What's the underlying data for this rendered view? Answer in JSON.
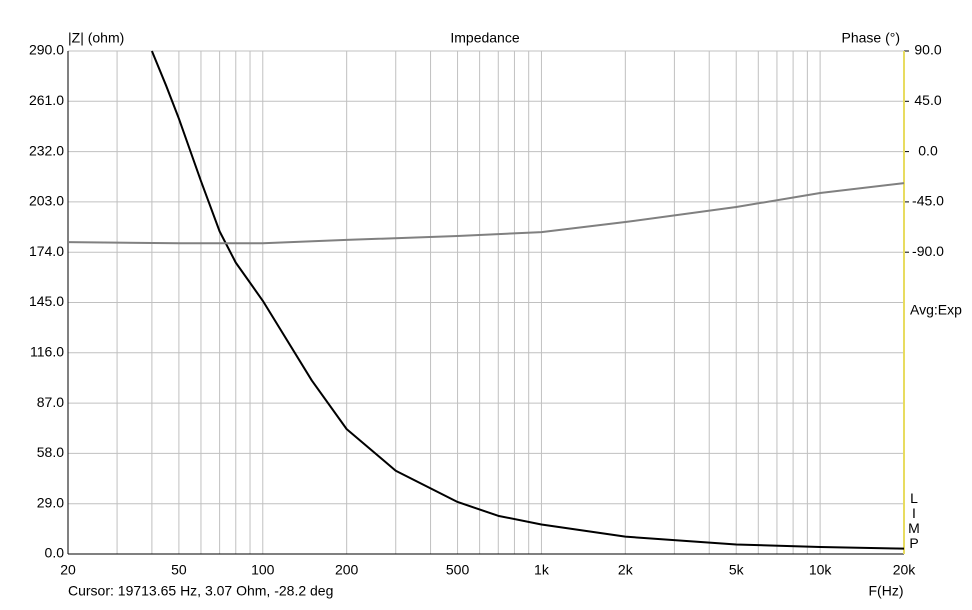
{
  "chart_data": {
    "type": "line",
    "title": "Impedance",
    "y_label": "|Z| (ohm)",
    "y2_label": "Phase (°)",
    "x_label": "F(Hz)",
    "averaging": "Avg:Exp",
    "side_label": "LIMP",
    "cursor": "Cursor: 19713.65 Hz, 3.07 Ohm, -28.2 deg",
    "xscale": "log",
    "grid": true,
    "xlim": [
      20,
      20000
    ],
    "xticks": [
      20,
      50,
      100,
      200,
      500,
      {
        "value": 1000,
        "label": "1k"
      },
      {
        "value": 2000,
        "label": "2k"
      },
      {
        "value": 5000,
        "label": "5k"
      },
      {
        "value": 10000,
        "label": "10k"
      },
      {
        "value": 20000,
        "label": "20k"
      }
    ],
    "xminor": [
      30,
      40,
      60,
      70,
      80,
      90,
      300,
      400,
      600,
      700,
      800,
      900,
      3000,
      4000,
      6000,
      7000,
      8000,
      9000
    ],
    "ylim": [
      0,
      290
    ],
    "yticks": [
      {
        "value": 0,
        "label": "0.0"
      },
      {
        "value": 29,
        "label": "29.0"
      },
      {
        "value": 58,
        "label": "58.0"
      },
      {
        "value": 87,
        "label": "87.0"
      },
      {
        "value": 116,
        "label": "116.0"
      },
      {
        "value": 145,
        "label": "145.0"
      },
      {
        "value": 174,
        "label": "174.0"
      },
      {
        "value": 203,
        "label": "203.0"
      },
      {
        "value": 232,
        "label": "232.0"
      },
      {
        "value": 261,
        "label": "261.0"
      },
      {
        "value": 290,
        "label": "290.0"
      }
    ],
    "y2lim": [
      -360,
      90
    ],
    "y2ticks": [
      {
        "value": 90,
        "label": "90.0"
      },
      {
        "value": 45,
        "label": "45.0"
      },
      {
        "value": 0,
        "label": "0.0"
      },
      {
        "value": -45,
        "label": "-45.0"
      },
      {
        "value": -90,
        "label": "-90.0"
      }
    ],
    "y2_color": "#e8dc60",
    "series": [
      {
        "color": "#000000",
        "axis": "y",
        "x": [
          40,
          45,
          50,
          60,
          70,
          80,
          100,
          150,
          200,
          300,
          500,
          700,
          1000,
          2000,
          5000,
          10000,
          20000
        ],
        "values": [
          290,
          270,
          251,
          215,
          186,
          168,
          146,
          100,
          72,
          48,
          30,
          22,
          17,
          10,
          5.5,
          4,
          3.07
        ]
      },
      {
        "color": "#808080",
        "axis": "y2",
        "x": [
          20,
          50,
          100,
          200,
          500,
          1000,
          2000,
          5000,
          10000,
          20000
        ],
        "values": [
          -81,
          -82,
          -82,
          -79,
          -75.5,
          -72,
          -63,
          -49.6,
          -37,
          -28.2
        ]
      }
    ]
  }
}
